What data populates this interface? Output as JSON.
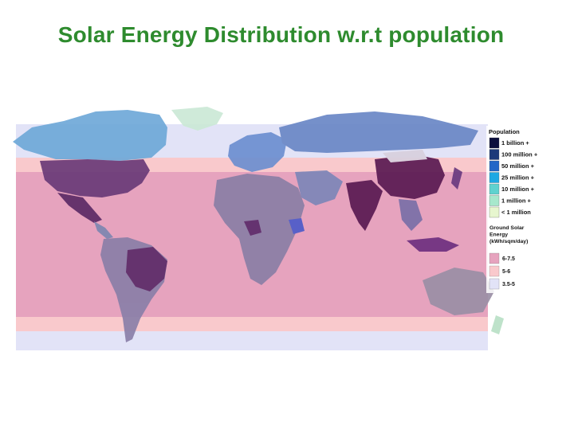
{
  "slide": {
    "title": "Solar Energy Distribution w.r.t population"
  },
  "map": {
    "background_color": "#ffffff",
    "bands": [
      {
        "key": "3.5-5",
        "color": "#e2e3f7"
      },
      {
        "key": "5-6",
        "color": "#f9c9cc"
      },
      {
        "key": "6-7.5",
        "color": "#e6a3be"
      },
      {
        "key": "5-6",
        "color": "#f9c9cc"
      },
      {
        "key": "3.5-5",
        "color": "#e2e3f7"
      }
    ],
    "population_colors": {
      "billion": "#5a1a52",
      "hundred_million": "#6e2f73",
      "fifty_million": "#4a6fcf",
      "twentyfive_million": "#5e8fd6",
      "ten_million": "#7d9cd0",
      "one_million": "#8a8fb2",
      "under_million": "#9f8ba3"
    },
    "legend": {
      "population_title": "Population",
      "population_items": [
        {
          "label": "1 billion +",
          "color": "#0c0f3d"
        },
        {
          "label": "100 million +",
          "color": "#1d3a7a"
        },
        {
          "label": "50 million +",
          "color": "#2266c7"
        },
        {
          "label": "25 million +",
          "color": "#1ea8e3"
        },
        {
          "label": "10 million +",
          "color": "#5fd2cf"
        },
        {
          "label": "1 million +",
          "color": "#a7e8cc"
        },
        {
          "label": "< 1 million",
          "color": "#e7f6cf"
        }
      ],
      "energy_title_lines": [
        "Ground Solar",
        "Energy",
        "(kWh/sqm/day)"
      ],
      "energy_items": [
        {
          "label": "6-7.5",
          "color": "#e6a3be"
        },
        {
          "label": "5-6",
          "color": "#f9c9cc"
        },
        {
          "label": "3.5-5",
          "color": "#e2e3f7"
        }
      ]
    }
  }
}
